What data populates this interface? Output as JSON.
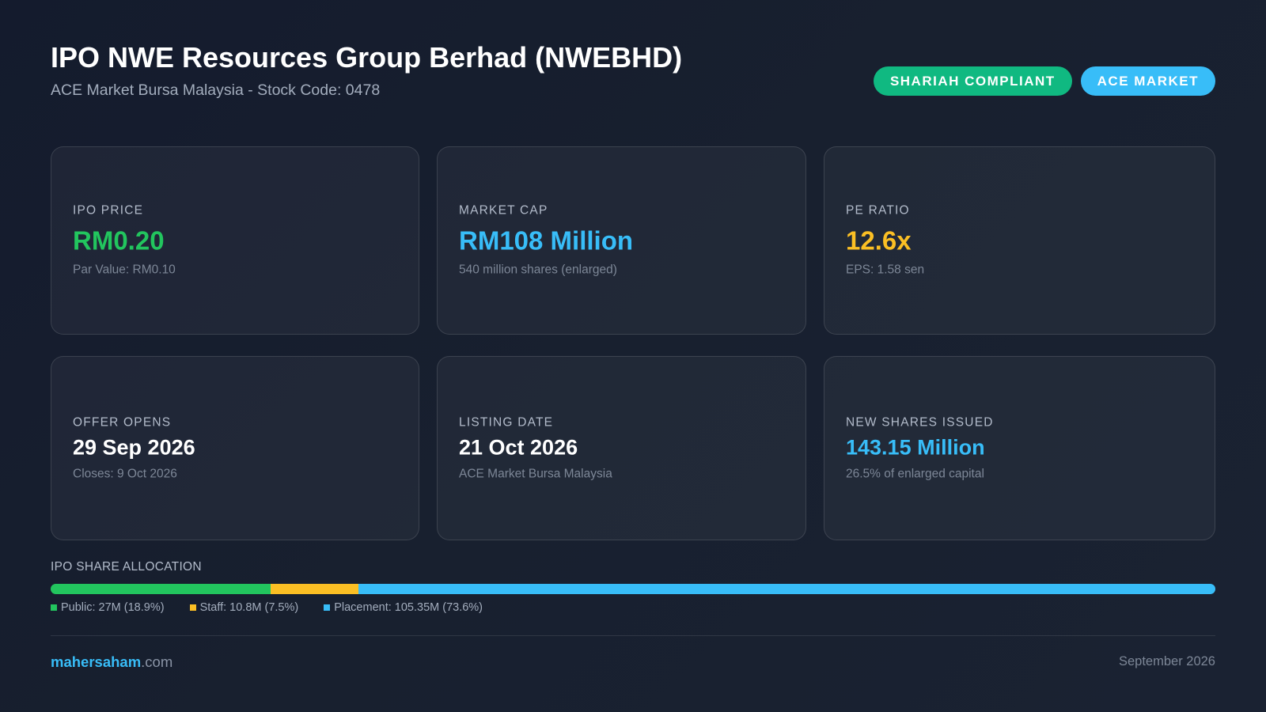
{
  "header": {
    "title": "IPO NWE Resources Group Berhad (NWEBHD)",
    "subtitle": "ACE Market Bursa Malaysia - Stock Code: 0478",
    "badges": [
      {
        "label": "SHARIAH COMPLIANT",
        "color": "#10b981"
      },
      {
        "label": "ACE MARKET",
        "color": "#38bdf8"
      }
    ]
  },
  "cards": [
    {
      "label": "IPO PRICE",
      "value": "RM0.20",
      "sub": "Par Value: RM0.10",
      "value_color": "#22c55e"
    },
    {
      "label": "MARKET CAP",
      "value": "RM108 Million",
      "sub": "540 million shares (enlarged)",
      "value_color": "#38bdf8"
    },
    {
      "label": "PE RATIO",
      "value": "12.6x",
      "sub": "EPS: 1.58 sen",
      "value_color": "#fbbf24"
    },
    {
      "label": "OFFER OPENS",
      "value": "29 Sep 2026",
      "sub": "Closes: 9 Oct 2026",
      "value_color": "#ffffff"
    },
    {
      "label": "LISTING DATE",
      "value": "21 Oct 2026",
      "sub": "ACE Market Bursa Malaysia",
      "value_color": "#ffffff"
    },
    {
      "label": "NEW SHARES ISSUED",
      "value": "143.15 Million",
      "sub": "26.5% of enlarged capital",
      "value_color": "#38bdf8"
    }
  ],
  "allocation": {
    "title": "IPO SHARE ALLOCATION",
    "segments": [
      {
        "label": "Public: 27M (18.9%)",
        "percent": 18.9,
        "color": "#22c55e"
      },
      {
        "label": "Staff: 10.8M (7.5%)",
        "percent": 7.5,
        "color": "#fbbf24"
      },
      {
        "label": "Placement: 105.35M (73.6%)",
        "percent": 73.6,
        "color": "#38bdf8"
      }
    ]
  },
  "footer": {
    "brand_name": "mahersaham",
    "brand_tld": ".com",
    "date": "September 2026"
  }
}
